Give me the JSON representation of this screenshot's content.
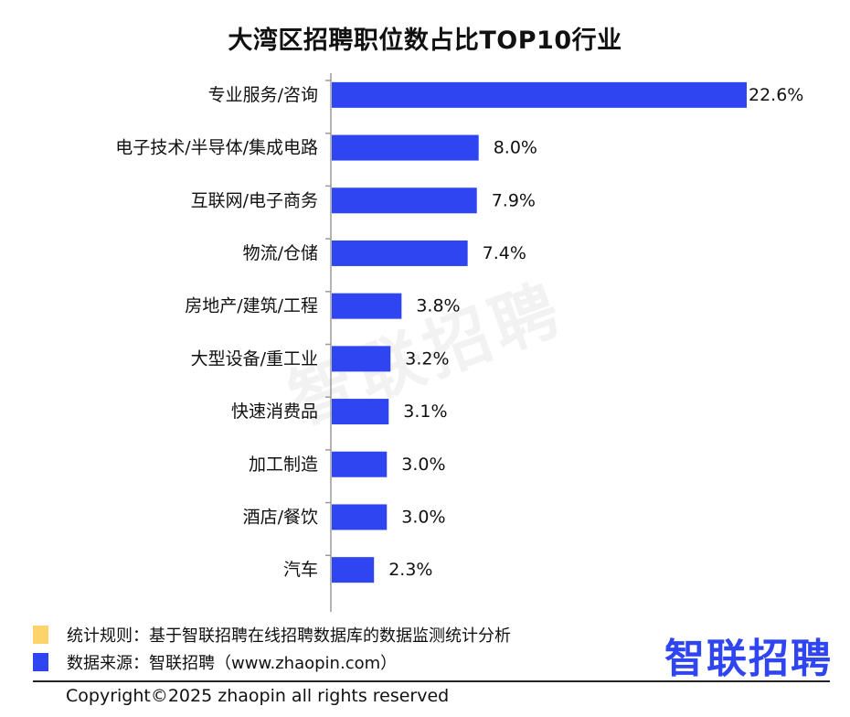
{
  "chart_data": {
    "type": "bar",
    "orientation": "horizontal",
    "title": "大湾区招聘职位数占比TOP10行业",
    "categories": [
      "专业服务/咨询",
      "电子技术/半导体/集成电路",
      "互联网/电子商务",
      "物流/仓储",
      "房地产/建筑/工程",
      "大型设备/重工业",
      "快速消费品",
      "加工制造",
      "酒店/餐饮",
      "汽车"
    ],
    "values": [
      22.6,
      8.0,
      7.9,
      7.4,
      3.8,
      3.2,
      3.1,
      3.0,
      3.0,
      2.3
    ],
    "value_labels": [
      "22.6%",
      "8.0%",
      "7.9%",
      "7.4%",
      "3.8%",
      "3.2%",
      "3.1%",
      "3.0%",
      "3.0%",
      "2.3%"
    ],
    "unit": "%",
    "xlim": [
      0,
      22.6
    ],
    "grid": false,
    "bar_color": "#2f45f2"
  },
  "watermark": "智联招聘",
  "notes": [
    {
      "text": "统计规则：基于智联招聘在线招聘数据库的数据监测统计分析",
      "color": "#fdd36b"
    },
    {
      "text": "数据来源：智联招聘（www.zhaopin.com）",
      "color": "#2f45f2"
    }
  ],
  "logo": "智联招聘",
  "copyright": "Copyright©2025 zhaopin all rights reserved"
}
